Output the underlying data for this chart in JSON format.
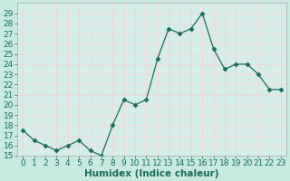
{
  "x": [
    0,
    1,
    2,
    3,
    4,
    5,
    6,
    7,
    8,
    9,
    10,
    11,
    12,
    13,
    14,
    15,
    16,
    17,
    18,
    19,
    20,
    21,
    22,
    23
  ],
  "y": [
    17.5,
    16.5,
    16.0,
    15.5,
    16.0,
    16.5,
    15.5,
    15.0,
    18.0,
    20.5,
    20.0,
    20.5,
    24.5,
    27.5,
    27.0,
    27.5,
    29.0,
    25.5,
    23.5,
    24.0,
    24.0,
    23.0,
    21.5,
    21.5
  ],
  "line_color": "#1a6b5a",
  "marker": "D",
  "marker_size": 2.5,
  "bg_color": "#c8e8e0",
  "plot_bg_color": "#d6eeea",
  "grid_color": "#f0d8d8",
  "title": "",
  "xlabel": "Humidex (Indice chaleur)",
  "ylabel": "",
  "ylim": [
    15,
    30
  ],
  "xlim": [
    -0.5,
    23.5
  ],
  "yticks": [
    15,
    16,
    17,
    18,
    19,
    20,
    21,
    22,
    23,
    24,
    25,
    26,
    27,
    28,
    29
  ],
  "xticks": [
    0,
    1,
    2,
    3,
    4,
    5,
    6,
    7,
    8,
    9,
    10,
    11,
    12,
    13,
    14,
    15,
    16,
    17,
    18,
    19,
    20,
    21,
    22,
    23
  ],
  "tick_color": "#1a6b5a",
  "label_fontsize": 6.5,
  "xlabel_fontsize": 7.5,
  "axis_color": "#1a6b5a",
  "spine_color": "#aaaaaa"
}
